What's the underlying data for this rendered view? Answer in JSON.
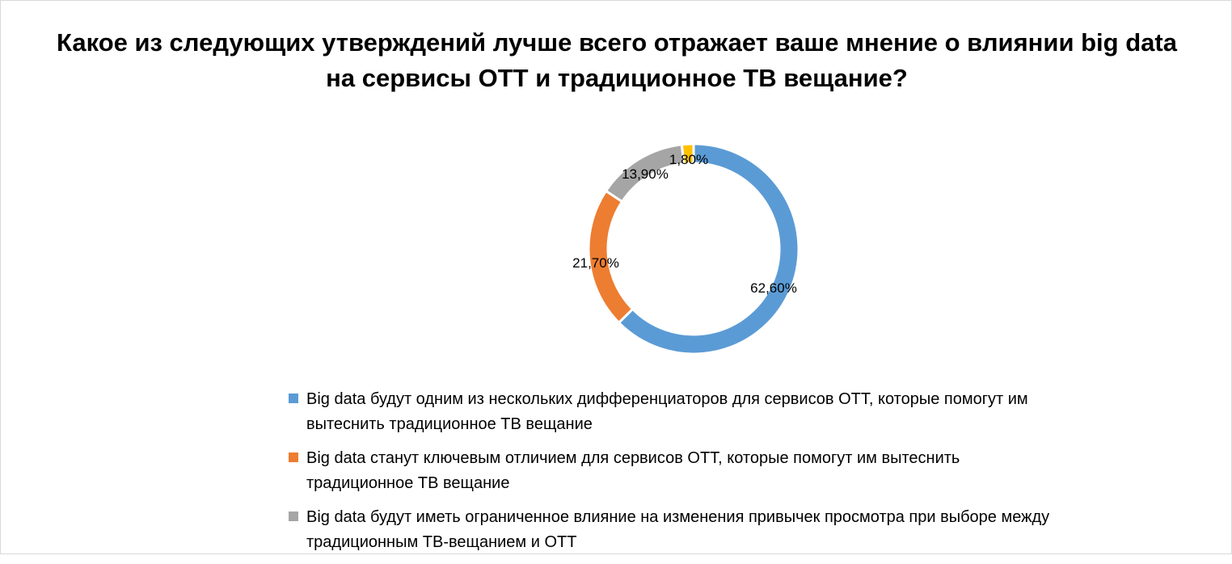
{
  "chart_data": {
    "type": "pie",
    "variant": "donut",
    "title": "Какое из следующих утверждений лучше всего отражает ваше мнение о влиянии big data на сервисы ОТТ и традиционное ТВ вещание?",
    "legend_position": "bottom",
    "slices": [
      {
        "label": "Big data будут одним из нескольких дифференциаторов для сервисов ОТТ, которые помогут им вытеснить традиционное ТВ вещание",
        "value": 62.6,
        "display": "62,60%",
        "color": "#5b9bd5",
        "in_legend": true
      },
      {
        "label": "Big data станут ключевым отличием для сервисов ОТТ, которые помогут им вытеснить традиционное ТВ вещание",
        "value": 21.7,
        "display": "21,70%",
        "color": "#ed7d31",
        "in_legend": true
      },
      {
        "label": "Big data будут иметь ограниченное влияние на изменения привычек просмотра при выборе между традиционным ТВ-вещанием и ОТТ",
        "value": 13.9,
        "display": "13,90%",
        "color": "#a5a5a5",
        "in_legend": true
      },
      {
        "label": "",
        "value": 1.8,
        "display": "1,80%",
        "color": "#ffc000",
        "in_legend": false
      }
    ]
  }
}
